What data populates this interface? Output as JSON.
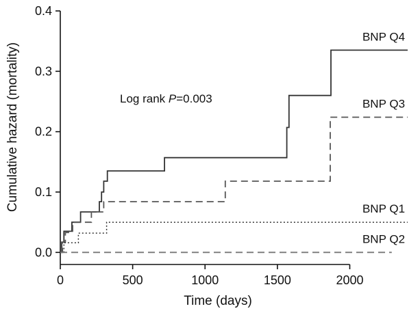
{
  "chart_data": {
    "type": "line",
    "xlabel": "Time (days)",
    "ylabel": "Cumulative hazard (mortality)",
    "xlim": [
      0,
      2400
    ],
    "ylim": [
      -0.02,
      0.4
    ],
    "xticks": [
      0,
      500,
      1000,
      1500,
      2000
    ],
    "xtick_labels": [
      "0",
      "500",
      "1000",
      "1500",
      "2000"
    ],
    "yticks": [
      0.0,
      0.1,
      0.2,
      0.3,
      0.4
    ],
    "ytick_labels": [
      "0.0",
      "0.1",
      "0.2",
      "0.3",
      "0.4"
    ],
    "grid": false,
    "annotation": {
      "prefix": "Log rank ",
      "italic": "P",
      "suffix": "=0.003"
    },
    "series": [
      {
        "name": "BNP Q4",
        "style": "solid",
        "color": "#333333",
        "steps": [
          [
            0,
            0.0
          ],
          [
            10,
            0.017
          ],
          [
            25,
            0.035
          ],
          [
            80,
            0.05
          ],
          [
            140,
            0.067
          ],
          [
            270,
            0.084
          ],
          [
            285,
            0.1
          ],
          [
            300,
            0.118
          ],
          [
            325,
            0.135
          ],
          [
            720,
            0.157
          ],
          [
            1565,
            0.207
          ],
          [
            1580,
            0.26
          ],
          [
            1870,
            0.335
          ],
          [
            2400,
            0.335
          ]
        ]
      },
      {
        "name": "BNP Q3",
        "style": "dashed",
        "color": "#555555",
        "steps": [
          [
            0,
            0.0
          ],
          [
            15,
            0.017
          ],
          [
            35,
            0.033
          ],
          [
            85,
            0.05
          ],
          [
            215,
            0.067
          ],
          [
            300,
            0.084
          ],
          [
            1140,
            0.118
          ],
          [
            1865,
            0.224
          ],
          [
            2400,
            0.224
          ]
        ]
      },
      {
        "name": "BNP Q1",
        "style": "dotted",
        "color": "#333333",
        "steps": [
          [
            0,
            0.0
          ],
          [
            25,
            0.016
          ],
          [
            125,
            0.032
          ],
          [
            320,
            0.05
          ],
          [
            2400,
            0.05
          ]
        ]
      },
      {
        "name": "BNP Q2",
        "style": "dashed",
        "color": "#777777",
        "steps": [
          [
            0,
            0.0
          ],
          [
            2290,
            0.0
          ]
        ]
      }
    ]
  }
}
